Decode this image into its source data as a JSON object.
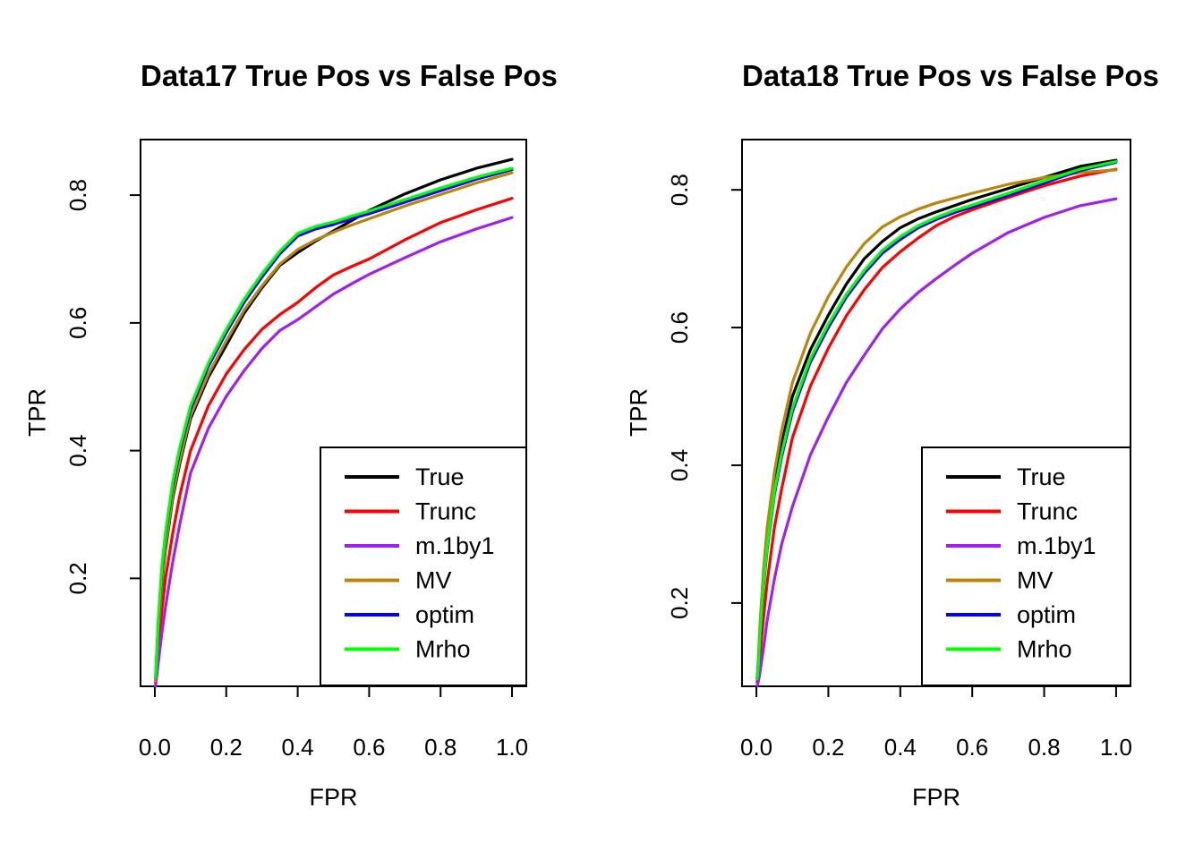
{
  "figure": {
    "background": "#ffffff",
    "axis_color": "#000000"
  },
  "chart_data": [
    {
      "type": "line",
      "title": "Data17 True Pos vs False Pos",
      "xlabel": "FPR",
      "ylabel": "TPR",
      "xlim": [
        -0.04,
        1.04
      ],
      "ylim": [
        0.031,
        0.887
      ],
      "grid": false,
      "xticks": {
        "values": [
          0,
          0.2,
          0.4,
          0.6,
          0.8,
          1.0
        ],
        "labels": [
          "0.0",
          "0.2",
          "0.4",
          "0.6",
          "0.8",
          "1.0"
        ]
      },
      "yticks": {
        "values": [
          0.2,
          0.4,
          0.6,
          0.8
        ],
        "labels": [
          "0.2",
          "0.4",
          "0.6",
          "0.8"
        ]
      },
      "legend": {
        "position": "bottom-right",
        "entries": [
          "True",
          "Trunc",
          "m.1by1",
          "MV",
          "optim",
          "Mrho"
        ]
      },
      "x": [
        0.002,
        0.005,
        0.01,
        0.02,
        0.03,
        0.05,
        0.07,
        0.1,
        0.15,
        0.2,
        0.25,
        0.3,
        0.35,
        0.4,
        0.45,
        0.5,
        0.55,
        0.6,
        0.7,
        0.8,
        0.9,
        1.0
      ],
      "series": [
        {
          "name": "True",
          "color": "#000000",
          "y": [
            0.04,
            0.07,
            0.12,
            0.19,
            0.245,
            0.325,
            0.38,
            0.45,
            0.515,
            0.565,
            0.615,
            0.655,
            0.69,
            0.71,
            0.728,
            0.744,
            0.76,
            0.776,
            0.802,
            0.824,
            0.842,
            0.856
          ]
        },
        {
          "name": "Trunc",
          "color": "#ff0000",
          "y": [
            0.035,
            0.055,
            0.09,
            0.15,
            0.2,
            0.27,
            0.33,
            0.4,
            0.47,
            0.52,
            0.558,
            0.59,
            0.613,
            0.632,
            0.655,
            0.675,
            0.688,
            0.7,
            0.73,
            0.757,
            0.777,
            0.795
          ]
        },
        {
          "name": "m.1by1",
          "color": "#a020f0",
          "y": [
            0.031,
            0.045,
            0.07,
            0.115,
            0.155,
            0.225,
            0.285,
            0.365,
            0.435,
            0.485,
            0.525,
            0.56,
            0.588,
            0.605,
            0.625,
            0.645,
            0.661,
            0.676,
            0.702,
            0.727,
            0.747,
            0.765
          ]
        },
        {
          "name": "MV",
          "color": "#b8860b",
          "y": [
            0.04,
            0.07,
            0.125,
            0.195,
            0.25,
            0.33,
            0.385,
            0.455,
            0.52,
            0.572,
            0.62,
            0.658,
            0.692,
            0.715,
            0.73,
            0.742,
            0.753,
            0.763,
            0.783,
            0.801,
            0.819,
            0.835
          ]
        },
        {
          "name": "optim",
          "color": "#0000ff",
          "y": [
            0.045,
            0.08,
            0.135,
            0.215,
            0.268,
            0.345,
            0.4,
            0.465,
            0.532,
            0.585,
            0.632,
            0.672,
            0.708,
            0.736,
            0.747,
            0.754,
            0.763,
            0.771,
            0.789,
            0.807,
            0.825,
            0.84
          ]
        },
        {
          "name": "Mrho",
          "color": "#00ff00",
          "y": [
            0.045,
            0.08,
            0.14,
            0.22,
            0.272,
            0.35,
            0.405,
            0.47,
            0.537,
            0.59,
            0.637,
            0.677,
            0.712,
            0.74,
            0.751,
            0.758,
            0.767,
            0.775,
            0.793,
            0.811,
            0.828,
            0.842
          ]
        }
      ]
    },
    {
      "type": "line",
      "title": "Data18 True Pos vs False Pos",
      "xlabel": "FPR",
      "ylabel": "TPR",
      "xlim": [
        -0.04,
        1.04
      ],
      "ylim": [
        0.079,
        0.873
      ],
      "grid": false,
      "xticks": {
        "values": [
          0,
          0.2,
          0.4,
          0.6,
          0.8,
          1.0
        ],
        "labels": [
          "0.0",
          "0.2",
          "0.4",
          "0.6",
          "0.8",
          "1.0"
        ]
      },
      "yticks": {
        "values": [
          0.2,
          0.4,
          0.6,
          0.8
        ],
        "labels": [
          "0.2",
          "0.4",
          "0.6",
          "0.8"
        ]
      },
      "legend": {
        "position": "bottom-right",
        "entries": [
          "True",
          "Trunc",
          "m.1by1",
          "MV",
          "optim",
          "Mrho"
        ]
      },
      "x": [
        0.002,
        0.005,
        0.01,
        0.02,
        0.03,
        0.05,
        0.07,
        0.1,
        0.15,
        0.2,
        0.25,
        0.3,
        0.35,
        0.4,
        0.45,
        0.5,
        0.55,
        0.6,
        0.7,
        0.8,
        0.9,
        1.0
      ],
      "series": [
        {
          "name": "True",
          "color": "#000000",
          "y": [
            0.09,
            0.11,
            0.16,
            0.24,
            0.295,
            0.375,
            0.43,
            0.5,
            0.568,
            0.618,
            0.663,
            0.7,
            0.725,
            0.745,
            0.758,
            0.768,
            0.777,
            0.786,
            0.802,
            0.818,
            0.834,
            0.843
          ]
        },
        {
          "name": "Trunc",
          "color": "#ff0000",
          "y": [
            0.085,
            0.095,
            0.125,
            0.18,
            0.23,
            0.31,
            0.365,
            0.44,
            0.515,
            0.57,
            0.617,
            0.655,
            0.687,
            0.71,
            0.73,
            0.748,
            0.761,
            0.771,
            0.789,
            0.806,
            0.82,
            0.83
          ]
        },
        {
          "name": "m.1by1",
          "color": "#a020f0",
          "y": [
            0.08,
            0.085,
            0.1,
            0.135,
            0.175,
            0.235,
            0.285,
            0.34,
            0.415,
            0.47,
            0.52,
            0.56,
            0.598,
            0.627,
            0.651,
            0.671,
            0.69,
            0.708,
            0.738,
            0.76,
            0.777,
            0.787
          ]
        },
        {
          "name": "MV",
          "color": "#b8860b",
          "y": [
            0.09,
            0.115,
            0.17,
            0.25,
            0.31,
            0.39,
            0.45,
            0.52,
            0.592,
            0.645,
            0.688,
            0.722,
            0.746,
            0.761,
            0.772,
            0.781,
            0.788,
            0.795,
            0.808,
            0.818,
            0.825,
            0.829
          ]
        },
        {
          "name": "optim",
          "color": "#0000ff",
          "y": [
            0.09,
            0.105,
            0.15,
            0.225,
            0.278,
            0.358,
            0.412,
            0.478,
            0.55,
            0.6,
            0.644,
            0.679,
            0.708,
            0.728,
            0.745,
            0.757,
            0.767,
            0.775,
            0.792,
            0.81,
            0.828,
            0.84
          ]
        },
        {
          "name": "Mrho",
          "color": "#00ff00",
          "y": [
            0.09,
            0.105,
            0.155,
            0.23,
            0.282,
            0.362,
            0.417,
            0.483,
            0.555,
            0.605,
            0.648,
            0.683,
            0.712,
            0.732,
            0.748,
            0.76,
            0.77,
            0.778,
            0.795,
            0.813,
            0.83,
            0.841
          ]
        }
      ]
    }
  ]
}
